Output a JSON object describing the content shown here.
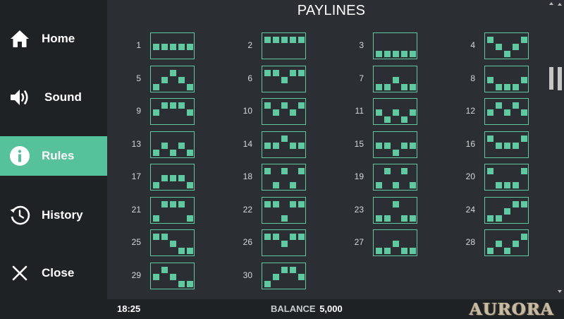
{
  "sidebar": {
    "items": [
      {
        "label": "Home",
        "icon": "home-icon",
        "active": false
      },
      {
        "label": "Sound",
        "icon": "speaker-icon",
        "active": false
      },
      {
        "label": "Rules",
        "icon": "info-icon",
        "active": true
      },
      {
        "label": "History",
        "icon": "history-icon",
        "active": false
      },
      {
        "label": "Close",
        "icon": "close-icon",
        "active": false
      }
    ]
  },
  "main": {
    "title": "PAYLINES",
    "paylines": [
      {
        "number": "1",
        "rows": [
          1,
          1,
          1,
          1,
          1
        ]
      },
      {
        "number": "2",
        "rows": [
          0,
          0,
          0,
          0,
          0
        ]
      },
      {
        "number": "3",
        "rows": [
          2,
          2,
          2,
          2,
          2
        ]
      },
      {
        "number": "4",
        "rows": [
          0,
          1,
          2,
          1,
          0
        ]
      },
      {
        "number": "5",
        "rows": [
          2,
          1,
          0,
          1,
          2
        ]
      },
      {
        "number": "6",
        "rows": [
          0,
          0,
          1,
          0,
          0
        ]
      },
      {
        "number": "7",
        "rows": [
          2,
          2,
          1,
          2,
          2
        ]
      },
      {
        "number": "8",
        "rows": [
          1,
          2,
          2,
          2,
          1
        ]
      },
      {
        "number": "9",
        "rows": [
          1,
          0,
          0,
          0,
          1
        ]
      },
      {
        "number": "10",
        "rows": [
          0,
          1,
          0,
          1,
          0
        ]
      },
      {
        "number": "11",
        "rows": [
          1,
          2,
          1,
          2,
          1
        ]
      },
      {
        "number": "12",
        "rows": [
          1,
          0,
          1,
          0,
          1
        ]
      },
      {
        "number": "13",
        "rows": [
          2,
          1,
          2,
          1,
          2
        ]
      },
      {
        "number": "14",
        "rows": [
          1,
          1,
          0,
          1,
          1
        ]
      },
      {
        "number": "15",
        "rows": [
          1,
          1,
          2,
          1,
          1
        ]
      },
      {
        "number": "16",
        "rows": [
          0,
          1,
          1,
          1,
          0
        ]
      },
      {
        "number": "17",
        "rows": [
          2,
          1,
          1,
          1,
          2
        ]
      },
      {
        "number": "18",
        "rows": [
          0,
          2,
          0,
          2,
          0
        ]
      },
      {
        "number": "19",
        "rows": [
          2,
          0,
          2,
          0,
          2
        ]
      },
      {
        "number": "20",
        "rows": [
          0,
          2,
          2,
          2,
          0
        ]
      },
      {
        "number": "21",
        "rows": [
          2,
          0,
          0,
          0,
          2
        ]
      },
      {
        "number": "22",
        "rows": [
          0,
          0,
          2,
          0,
          0
        ]
      },
      {
        "number": "23",
        "rows": [
          2,
          2,
          0,
          2,
          2
        ]
      },
      {
        "number": "24",
        "rows": [
          2,
          2,
          1,
          0,
          0
        ]
      },
      {
        "number": "25",
        "rows": [
          0,
          0,
          1,
          2,
          2
        ]
      },
      {
        "number": "26",
        "rows": [
          0,
          0,
          1,
          0,
          0
        ]
      },
      {
        "number": "27",
        "rows": [
          2,
          2,
          1,
          2,
          2
        ]
      },
      {
        "number": "28",
        "rows": [
          2,
          1,
          2,
          1,
          0
        ]
      },
      {
        "number": "29",
        "rows": [
          1,
          0,
          1,
          2,
          2
        ]
      },
      {
        "number": "30",
        "rows": [
          2,
          1,
          0,
          0,
          1
        ]
      }
    ]
  },
  "footer": {
    "time": "18:25",
    "balance_label": "BALANCE",
    "balance_value": "5,000",
    "logo_text": "AURORA"
  },
  "colors": {
    "accent": "#55c29b",
    "payline": "#5fcaa2",
    "panel": "#2b2f33",
    "sidebar": "#1f2225"
  }
}
